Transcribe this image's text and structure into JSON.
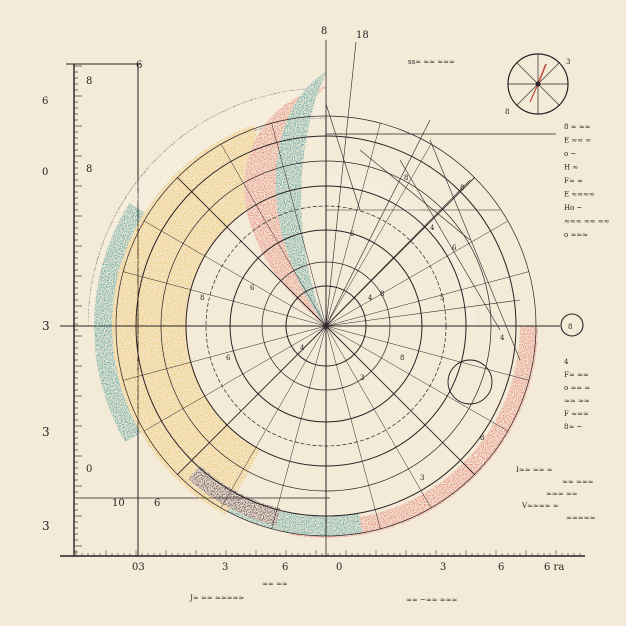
{
  "colors": {
    "paper": "#f3ead7",
    "ink": "#2a2226",
    "teal": "#2e8f91",
    "coral": "#e56c63",
    "mustard": "#f2bd4c",
    "plum": "#3b2130"
  },
  "left_scale": {
    "labels": [
      "6",
      "8",
      "0",
      "3",
      "3",
      "0",
      "3",
      "8"
    ]
  },
  "bottom_scale": {
    "labels": [
      "03",
      "3",
      "6",
      "0",
      "3",
      "6",
      "6 ra"
    ]
  },
  "top_labels": [
    "8",
    "18"
  ],
  "frame_labels": [
    "6",
    "10",
    "6"
  ],
  "header_scribble": "ss≈ ≈≈ ≈≈≈",
  "compass": {
    "label_left": "8",
    "label_right": "3"
  },
  "notes_right_top": [
    "8 ≈ ≈≈",
    "E ≈≈ ≈",
    "o ~",
    "H ≈",
    "F≈ ≈",
    "E ≈≈≈≈",
    "Ho ~",
    "≈≈≈ ≈≈ ≈≈",
    "o ≈≈≈"
  ],
  "marker_label": "8",
  "notes_right_mid": [
    "4",
    "F≈ ≈≈",
    "o ≈≈ ≈",
    "≈≈ ≈≈",
    "F ≈≈≈",
    "8≈ ~"
  ],
  "notes_right_bottom": [
    "I≈≈ ≈≈ ≈",
    "≈≈ ≈≈≈",
    "≈≈≈ ≈≈",
    "V≈≈≈≈ ≈",
    "≈≈≈≈≈"
  ],
  "bottom_notes_left": [
    "≈≈ ≈≈",
    "J≈ ≈≈ ≈≈≈≈≈"
  ],
  "bottom_notes_right": "≈≈ ~≈≈ ≈≈≈"
}
